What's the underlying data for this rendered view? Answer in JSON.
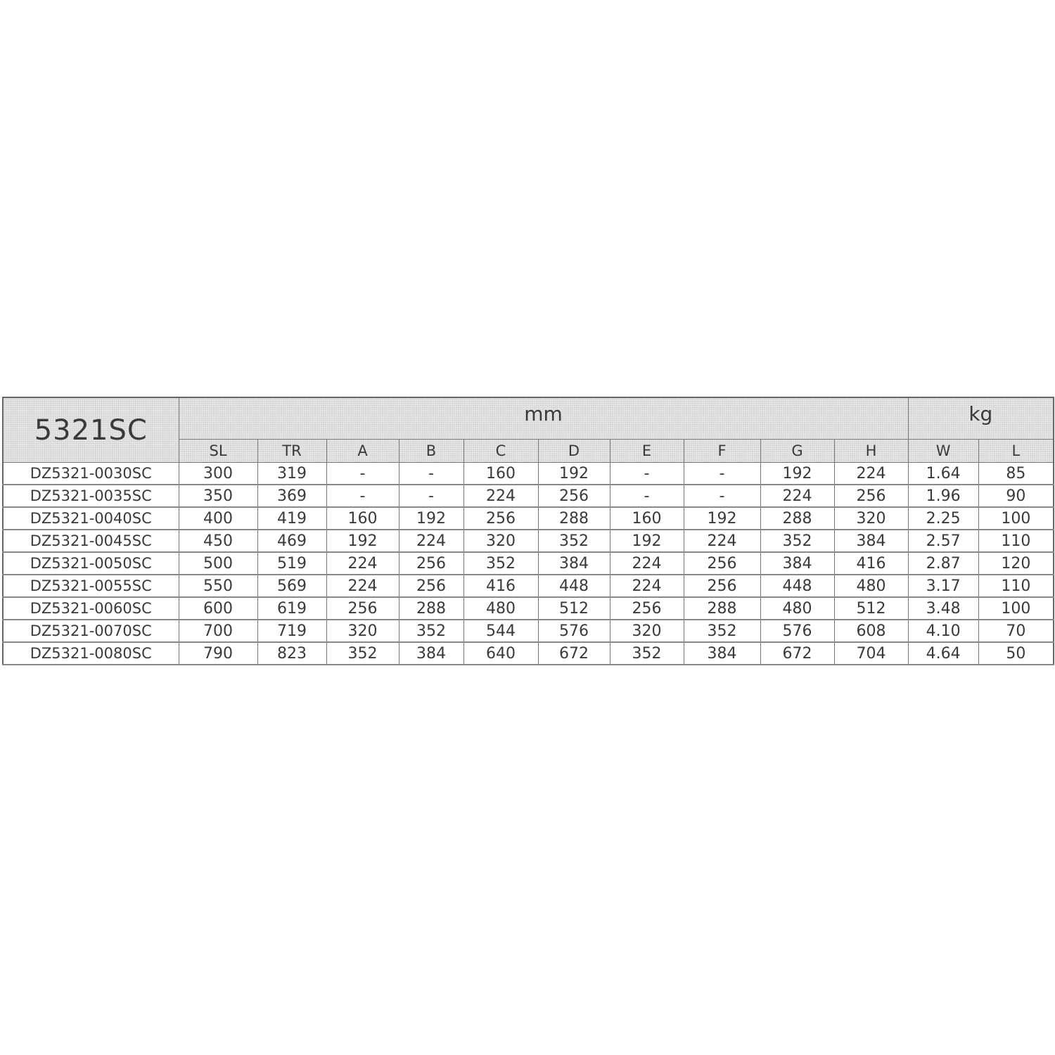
{
  "table": {
    "model_title": "5321SC",
    "unit_groups": [
      {
        "label": "mm",
        "span": 10
      },
      {
        "label": "kg",
        "span": 2
      }
    ],
    "columns": [
      "SL",
      "TR",
      "A",
      "B",
      "C",
      "D",
      "E",
      "F",
      "G",
      "H",
      "W",
      "L"
    ],
    "rows": [
      [
        "DZ5321-0030SC",
        "300",
        "319",
        "-",
        "-",
        "160",
        "192",
        "-",
        "-",
        "192",
        "224",
        "1.64",
        "85"
      ],
      [
        "DZ5321-0035SC",
        "350",
        "369",
        "-",
        "-",
        "224",
        "256",
        "-",
        "-",
        "224",
        "256",
        "1.96",
        "90"
      ],
      [
        "DZ5321-0040SC",
        "400",
        "419",
        "160",
        "192",
        "256",
        "288",
        "160",
        "192",
        "288",
        "320",
        "2.25",
        "100"
      ],
      [
        "DZ5321-0045SC",
        "450",
        "469",
        "192",
        "224",
        "320",
        "352",
        "192",
        "224",
        "352",
        "384",
        "2.57",
        "110"
      ],
      [
        "DZ5321-0050SC",
        "500",
        "519",
        "224",
        "256",
        "352",
        "384",
        "224",
        "256",
        "384",
        "416",
        "2.87",
        "120"
      ],
      [
        "DZ5321-0055SC",
        "550",
        "569",
        "224",
        "256",
        "416",
        "448",
        "224",
        "256",
        "448",
        "480",
        "3.17",
        "110"
      ],
      [
        "DZ5321-0060SC",
        "600",
        "619",
        "256",
        "288",
        "480",
        "512",
        "256",
        "288",
        "480",
        "512",
        "3.48",
        "100"
      ],
      [
        "DZ5321-0070SC",
        "700",
        "719",
        "320",
        "352",
        "544",
        "576",
        "320",
        "352",
        "576",
        "608",
        "4.10",
        "70"
      ],
      [
        "DZ5321-0080SC",
        "790",
        "823",
        "352",
        "384",
        "640",
        "672",
        "352",
        "384",
        "672",
        "704",
        "4.64",
        "50"
      ]
    ]
  }
}
